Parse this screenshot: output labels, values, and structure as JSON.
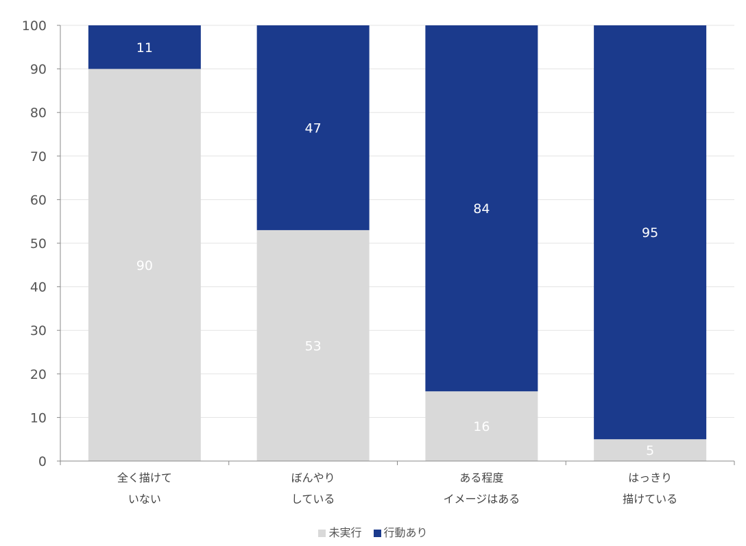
{
  "chart_data": {
    "type": "bar",
    "stacked": true,
    "categories": [
      [
        "全く描けて",
        "いない"
      ],
      [
        "ぼんやり",
        "している"
      ],
      [
        "ある程度",
        "イメージはある"
      ],
      [
        "はっきり",
        "描けている"
      ]
    ],
    "series": [
      {
        "name": "未実行",
        "color": "#d9d9d9",
        "label_color": "#ffffff",
        "values": [
          90,
          53,
          16,
          5
        ]
      },
      {
        "name": "行動あり",
        "color": "#1b3a8c",
        "label_color": "#ffffff",
        "values": [
          11,
          47,
          84,
          95
        ]
      }
    ],
    "ylim": [
      0,
      100
    ],
    "yticks": [
      0,
      10,
      20,
      30,
      40,
      50,
      60,
      70,
      80,
      90,
      100
    ],
    "grid": true,
    "legend": "bottom",
    "title": "",
    "xlabel": "",
    "ylabel": ""
  }
}
